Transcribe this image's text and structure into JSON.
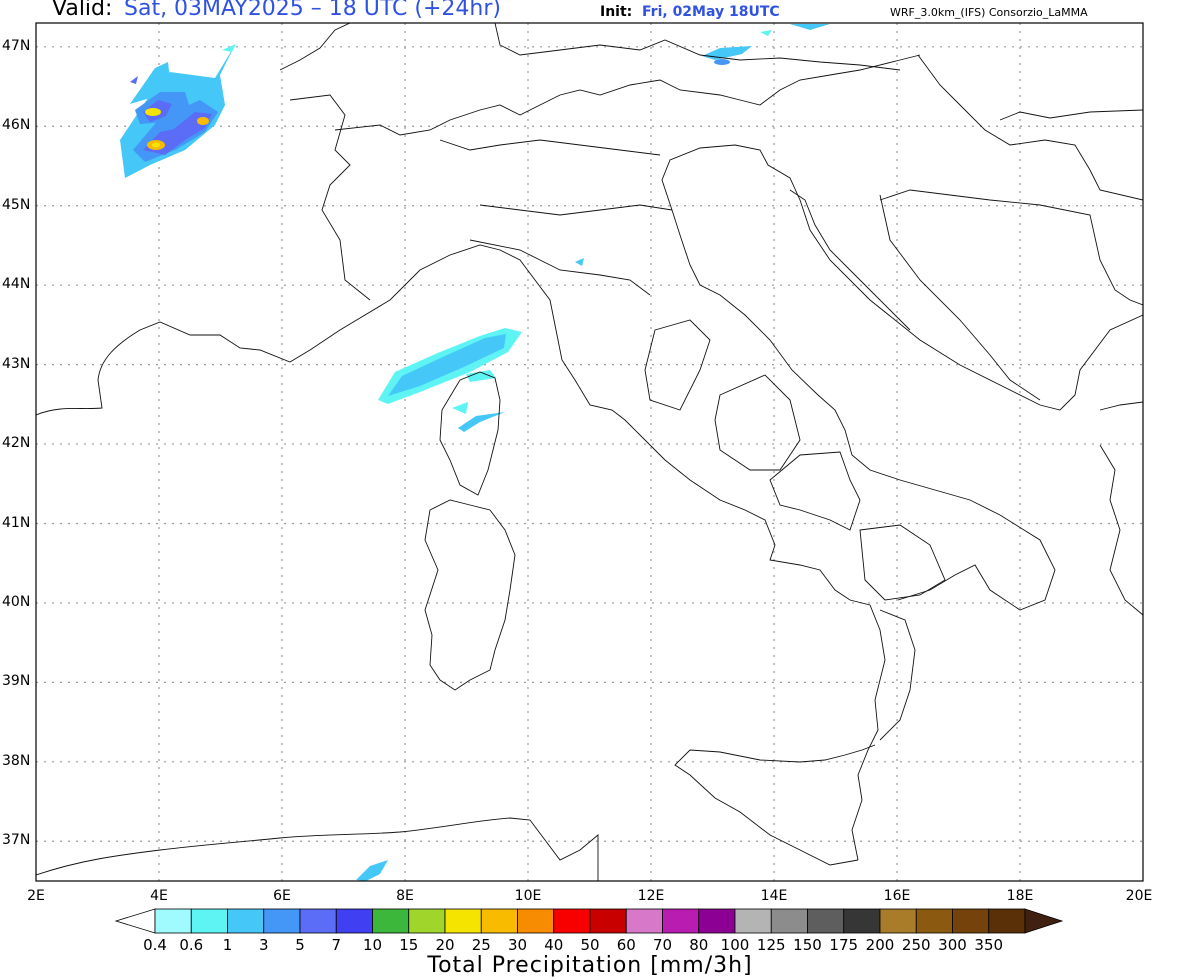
{
  "header": {
    "valid_label": "Valid:",
    "valid_value": "Sat, 03MAY2025 – 18 UTC (+24hr)",
    "init_label": "Init:",
    "init_value": "Fri, 02May 18UTC",
    "model": "WRF_3.0km_(IFS)  Consorzio_LaMMA"
  },
  "map": {
    "lon_labels": [
      "2E",
      "4E",
      "6E",
      "8E",
      "10E",
      "12E",
      "14E",
      "16E",
      "18E",
      "20E"
    ],
    "lat_labels": [
      "47N",
      "46N",
      "45N",
      "44N",
      "43N",
      "42N",
      "41N",
      "40N",
      "39N",
      "38N",
      "37N"
    ],
    "lon_range": [
      2,
      20
    ],
    "lat_range": [
      36.5,
      47.3
    ],
    "grid": "dotted"
  },
  "colorbar": {
    "title": "Total Precipitation [mm/3h]",
    "levels": [
      "0.4",
      "0.6",
      "1",
      "3",
      "5",
      "7",
      "10",
      "15",
      "20",
      "25",
      "30",
      "40",
      "50",
      "60",
      "70",
      "80",
      "100",
      "125",
      "150",
      "175",
      "200",
      "250",
      "300",
      "350"
    ],
    "colors": [
      "#9ffbff",
      "#5ef4f4",
      "#45c7f8",
      "#4497f6",
      "#5b6cf7",
      "#4040f2",
      "#3cb73c",
      "#a0d62c",
      "#f5e400",
      "#f8bb00",
      "#f88c00",
      "#f80000",
      "#c80000",
      "#d878c8",
      "#b81cb0",
      "#8c0094",
      "#b4b4b4",
      "#8c8c8c",
      "#5e5e5e",
      "#363636",
      "#a87c28",
      "#8c5a0e",
      "#74420a",
      "#5a3008"
    ],
    "under_color": "#ffffff",
    "over_color": "#402010"
  }
}
